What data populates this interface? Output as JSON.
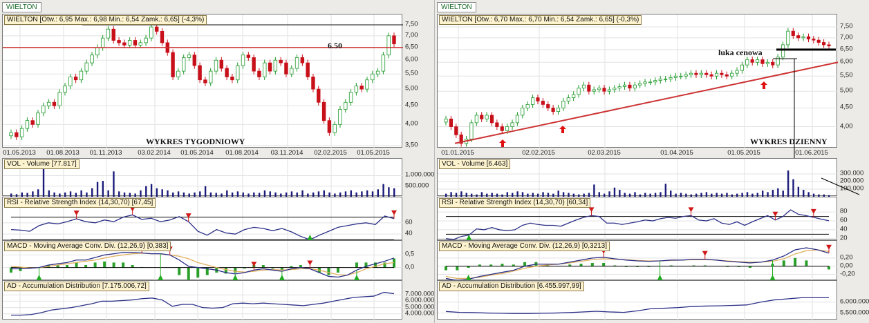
{
  "panels": {
    "left": {
      "tab": "WIELTON",
      "legend": "WIELTON [Otw.: 6,95  Max.: 6,98  Min.: 6,54  Zamk.: 6,65] (-4,3%)",
      "title": "WYKRES TYGODNIOWY",
      "level_label": "6.50",
      "vol_legend": "VOL - Volume [77.817]",
      "rsi_legend": "RSI - Relative Strength Index (14,30,70) [67,45]",
      "macd_legend": "MACD - Moving Average Conv. Div. (12,26,9) [0,383]",
      "ad_legend": "AD - Accumulation Distribution [7.175.006,72]"
    },
    "right": {
      "tab": "WIELTON",
      "legend": "WIELTON [Otw.: 6,70  Max.: 6,70  Min.: 6,54  Zamk.: 6,65] (-0,3%)",
      "title": "WYKRES DZIENNY",
      "gap_label": "luka cenowa",
      "vol_legend": "VOL - Volume [6.463]",
      "rsi_legend": "RSI - Relative Strength Index (14,30,70) [60,34]",
      "macd_legend": "MACD - Moving Average Conv. Div. (12,26,9) [0,3213]",
      "ad_legend": "AD - Accumulation Distribution [6.455.997,99]"
    }
  },
  "colors": {
    "up": "#1f9a2a",
    "down": "#c8101a",
    "line": "#2b2f86",
    "signal": "#e0b060",
    "hist": "#2aa02a",
    "trend": "#cc3333",
    "volume": "#1a1a7a"
  },
  "chart_data": [
    {
      "id": "left",
      "type": "candlestick",
      "period": "weekly",
      "x_ticks": [
        "01.05.2013",
        "01.08.2013",
        "01.11.2013",
        "03.02.2014",
        "01.05.2014",
        "01.08.2014",
        "03.11.2014",
        "02.02.2015",
        "01.05.2015"
      ],
      "y_ticks": [
        "7,50",
        "7,00",
        "6,50",
        "6,00",
        "5,50",
        "5,00",
        "4,50",
        "4,00",
        "3,50"
      ],
      "ylim": [
        3.5,
        7.8
      ],
      "support_level": 6.5,
      "resistance_level": 7.5,
      "close": [
        3.8,
        3.7,
        3.9,
        4.1,
        4.0,
        4.3,
        4.5,
        4.6,
        4.5,
        4.9,
        5.1,
        5.4,
        5.3,
        5.6,
        5.9,
        6.2,
        6.5,
        6.9,
        7.3,
        6.8,
        6.7,
        6.6,
        6.8,
        6.6,
        6.7,
        6.9,
        7.4,
        7.2,
        6.7,
        6.3,
        5.4,
        5.6,
        6.1,
        6.2,
        5.8,
        5.3,
        5.2,
        5.6,
        6.0,
        5.7,
        5.4,
        5.3,
        5.8,
        6.2,
        6.1,
        5.6,
        5.4,
        5.9,
        5.6,
        6.0,
        5.9,
        5.5,
        5.7,
        6.1,
        5.9,
        5.4,
        5.0,
        4.6,
        4.1,
        3.8,
        4.0,
        4.4,
        4.6,
        4.9,
        5.1,
        5.0,
        5.3,
        5.5,
        5.6,
        6.2,
        7.0,
        6.65
      ],
      "volume": {
        "ticks": [
          "1.000.000",
          "500.000"
        ],
        "tick_values": [
          1000000,
          500000
        ],
        "max": 1800000,
        "values_k": [
          150,
          120,
          200,
          180,
          250,
          350,
          1400,
          300,
          200,
          150,
          200,
          250,
          180,
          300,
          200,
          400,
          700,
          750,
          300,
          1200,
          250,
          200,
          180,
          150,
          300,
          500,
          600,
          400,
          350,
          300,
          200,
          250,
          200,
          150,
          200,
          250,
          500,
          200,
          180,
          150,
          300,
          200,
          250,
          200,
          150,
          200,
          180,
          300,
          250,
          200,
          150,
          200,
          250,
          200,
          300,
          150,
          200,
          250,
          300,
          200,
          150,
          200,
          250,
          300,
          200,
          250,
          300,
          250,
          350,
          600,
          450,
          400
        ]
      },
      "rsi": {
        "ticks": [
          "60",
          "40"
        ],
        "tick_values": [
          60,
          40
        ],
        "levels": [
          70,
          30
        ],
        "ylim": [
          28,
          105
        ],
        "values": [
          48,
          47,
          45,
          55,
          60,
          58,
          62,
          67,
          62,
          60,
          65,
          62,
          70,
          74,
          66,
          68,
          62,
          65,
          71,
          62,
          45,
          38,
          48,
          42,
          40,
          48,
          52,
          50,
          46,
          50,
          44,
          36,
          30,
          38,
          45,
          52,
          55,
          58,
          60,
          57,
          72,
          67.45
        ],
        "sell": [
          7,
          13,
          19,
          41
        ],
        "buy": [
          32
        ]
      },
      "macd": {
        "ticks": [
          "0,5",
          "0,0"
        ],
        "tick_values": [
          0.5,
          0
        ],
        "ylim": [
          -0.53,
          1.06
        ],
        "macd": [
          -0.05,
          -0.05,
          -0.03,
          0.0,
          0.1,
          0.15,
          0.2,
          0.3,
          0.3,
          0.4,
          0.5,
          0.55,
          0.6,
          0.6,
          0.58,
          0.55,
          0.55,
          0.5,
          0.3,
          0.05,
          0.0,
          -0.05,
          -0.1,
          -0.2,
          -0.25,
          -0.2,
          -0.1,
          -0.05,
          -0.1,
          -0.15,
          -0.05,
          0.0,
          -0.05,
          -0.2,
          -0.35,
          -0.38,
          -0.3,
          -0.1,
          0.05,
          0.15,
          0.25,
          0.38
        ],
        "signal": [
          0.05,
          0.02,
          -0.02,
          0.0,
          0.05,
          0.1,
          0.15,
          0.2,
          0.25,
          0.3,
          0.38,
          0.45,
          0.5,
          0.55,
          0.57,
          0.55,
          0.55,
          0.5,
          0.45,
          0.35,
          0.2,
          0.1,
          0.0,
          -0.08,
          -0.15,
          -0.18,
          -0.15,
          -0.1,
          -0.08,
          -0.1,
          -0.08,
          -0.05,
          -0.05,
          -0.1,
          -0.2,
          -0.28,
          -0.3,
          -0.2,
          -0.05,
          0.05,
          0.15,
          0.2
        ],
        "sell": [
          14,
          17,
          26,
          32
        ],
        "buy": [
          3,
          16,
          24,
          29,
          37
        ]
      },
      "ad": {
        "ticks": [
          "7.000.000",
          "6.000.000",
          "5.000.000",
          "4.000.000"
        ],
        "tick_values": [
          7,
          6,
          5,
          4
        ],
        "unit": "million",
        "ylim": [
          3.0,
          9.2
        ],
        "values": [
          3.8,
          3.8,
          3.9,
          4.2,
          4.6,
          4.8,
          5.0,
          5.3,
          5.6,
          6.0,
          6.0,
          6.1,
          6.2,
          6.4,
          6.5,
          6.2,
          5.2,
          5.5,
          5.5,
          5.0,
          4.9,
          5.0,
          5.6,
          5.7,
          5.6,
          5.7,
          5.6,
          5.5,
          5.4,
          5.3,
          5.5,
          5.7,
          6.0,
          6.3,
          6.6,
          6.7,
          6.8,
          7.4,
          7.18
        ]
      }
    },
    {
      "id": "right",
      "type": "candlestick",
      "period": "daily",
      "x_ticks": [
        "01.01.2015",
        "02.02.2015",
        "02.03.2015",
        "01.04.2015",
        "01.05.2015",
        "01.06.2015"
      ],
      "y_ticks": [
        "7,50",
        "7,00",
        "6,50",
        "6,00",
        "5,50",
        "5,00",
        "4,50",
        "4,00"
      ],
      "ylim": [
        3.55,
        7.9
      ],
      "support_level": 6.5,
      "trendline": [
        3.6,
        6.0
      ],
      "close": [
        4.2,
        4.0,
        3.8,
        3.6,
        3.7,
        4.1,
        4.3,
        4.2,
        4.3,
        4.1,
        4.0,
        3.9,
        4.0,
        4.1,
        4.3,
        4.5,
        4.6,
        4.8,
        4.7,
        4.6,
        4.5,
        4.4,
        4.5,
        4.7,
        4.8,
        4.9,
        5.1,
        5.2,
        5.0,
        5.05,
        5.1,
        5.0,
        5.05,
        5.1,
        5.15,
        5.2,
        5.1,
        5.2,
        5.25,
        5.3,
        5.3,
        5.35,
        5.4,
        5.4,
        5.45,
        5.5,
        5.5,
        5.55,
        5.6,
        5.55,
        5.6,
        5.55,
        5.5,
        5.6,
        5.55,
        5.5,
        5.6,
        5.7,
        5.9,
        6.1,
        6.0,
        6.1,
        5.95,
        6.0,
        5.9,
        6.2,
        6.7,
        7.3,
        7.1,
        7.0,
        7.05,
        6.95,
        6.9,
        6.8,
        6.7,
        6.65
      ],
      "volume": {
        "ticks": [
          "300.000",
          "200.000",
          "100.000"
        ],
        "tick_values": [
          300000,
          200000,
          100000
        ],
        "max": 500000,
        "values_k": [
          40,
          60,
          50,
          70,
          50,
          40,
          30,
          60,
          40,
          50,
          40,
          30,
          60,
          50,
          70,
          60,
          40,
          50,
          40,
          60,
          50,
          40,
          80,
          60,
          50,
          40,
          30,
          40,
          50,
          160,
          60,
          40,
          70,
          120,
          90,
          50,
          40,
          60,
          30,
          50,
          40,
          50,
          60,
          170,
          80,
          40,
          50,
          40,
          30,
          40,
          50,
          60,
          40,
          50,
          40,
          50,
          30,
          40,
          50,
          60,
          40,
          50,
          80,
          60,
          90,
          110,
          80,
          345,
          230,
          130,
          90,
          60,
          40,
          30,
          30,
          20
        ]
      },
      "rsi": {
        "ticks": [
          "80",
          "60",
          "40",
          "20"
        ],
        "tick_values": [
          80,
          60,
          40,
          20
        ],
        "levels": [
          70,
          30
        ],
        "ylim": [
          15,
          113
        ],
        "values": [
          20,
          18,
          25,
          28,
          42,
          40,
          45,
          40,
          38,
          40,
          50,
          55,
          52,
          50,
          50,
          48,
          55,
          62,
          68,
          72,
          70,
          55,
          55,
          52,
          55,
          58,
          62,
          60,
          65,
          68,
          66,
          70,
          72,
          62,
          60,
          65,
          55,
          52,
          58,
          50,
          58,
          65,
          72,
          62,
          70,
          85,
          75,
          72,
          68,
          64,
          60.34
        ],
        "sell": [
          19,
          32,
          43,
          48
        ],
        "buy": [
          3
        ]
      },
      "macd": {
        "ticks": [
          "0,20",
          "0,00",
          "-0,20"
        ],
        "tick_values": [
          0.2,
          0,
          -0.2
        ],
        "ylim": [
          -0.36,
          0.62
        ],
        "macd": [
          -0.3,
          -0.35,
          -0.32,
          -0.25,
          -0.2,
          -0.15,
          -0.1,
          0.0,
          0.05,
          0.05,
          0.05,
          0.1,
          0.15,
          0.2,
          0.22,
          0.18,
          0.15,
          0.13,
          0.12,
          0.13,
          0.15,
          0.15,
          0.17,
          0.17,
          0.15,
          0.12,
          0.1,
          0.08,
          0.1,
          0.15,
          0.25,
          0.4,
          0.45,
          0.4,
          0.32
        ],
        "signal": [
          -0.25,
          -0.3,
          -0.3,
          -0.27,
          -0.22,
          -0.18,
          -0.12,
          -0.05,
          0.0,
          0.03,
          0.05,
          0.08,
          0.12,
          0.16,
          0.18,
          0.17,
          0.16,
          0.14,
          0.13,
          0.13,
          0.14,
          0.15,
          0.16,
          0.16,
          0.15,
          0.13,
          0.11,
          0.1,
          0.1,
          0.12,
          0.18,
          0.3,
          0.38,
          0.4,
          0.36
        ],
        "sell": [
          14,
          23,
          34
        ],
        "buy": [
          2,
          19,
          29
        ]
      },
      "ad": {
        "ticks": [
          "6.000.000",
          "5.500.000"
        ],
        "tick_values": [
          6.0,
          5.5
        ],
        "unit": "million",
        "ylim": [
          5.17,
          6.97
        ],
        "values": [
          5.57,
          5.53,
          5.52,
          5.5,
          5.49,
          5.48,
          5.48,
          5.49,
          5.5,
          5.52,
          5.55,
          5.58,
          5.55,
          5.53,
          5.6,
          5.7,
          5.72,
          5.75,
          5.8,
          5.82,
          5.83,
          5.85,
          5.87,
          6.0,
          6.1,
          6.15,
          6.2,
          6.2,
          6.2
        ]
      }
    }
  ]
}
